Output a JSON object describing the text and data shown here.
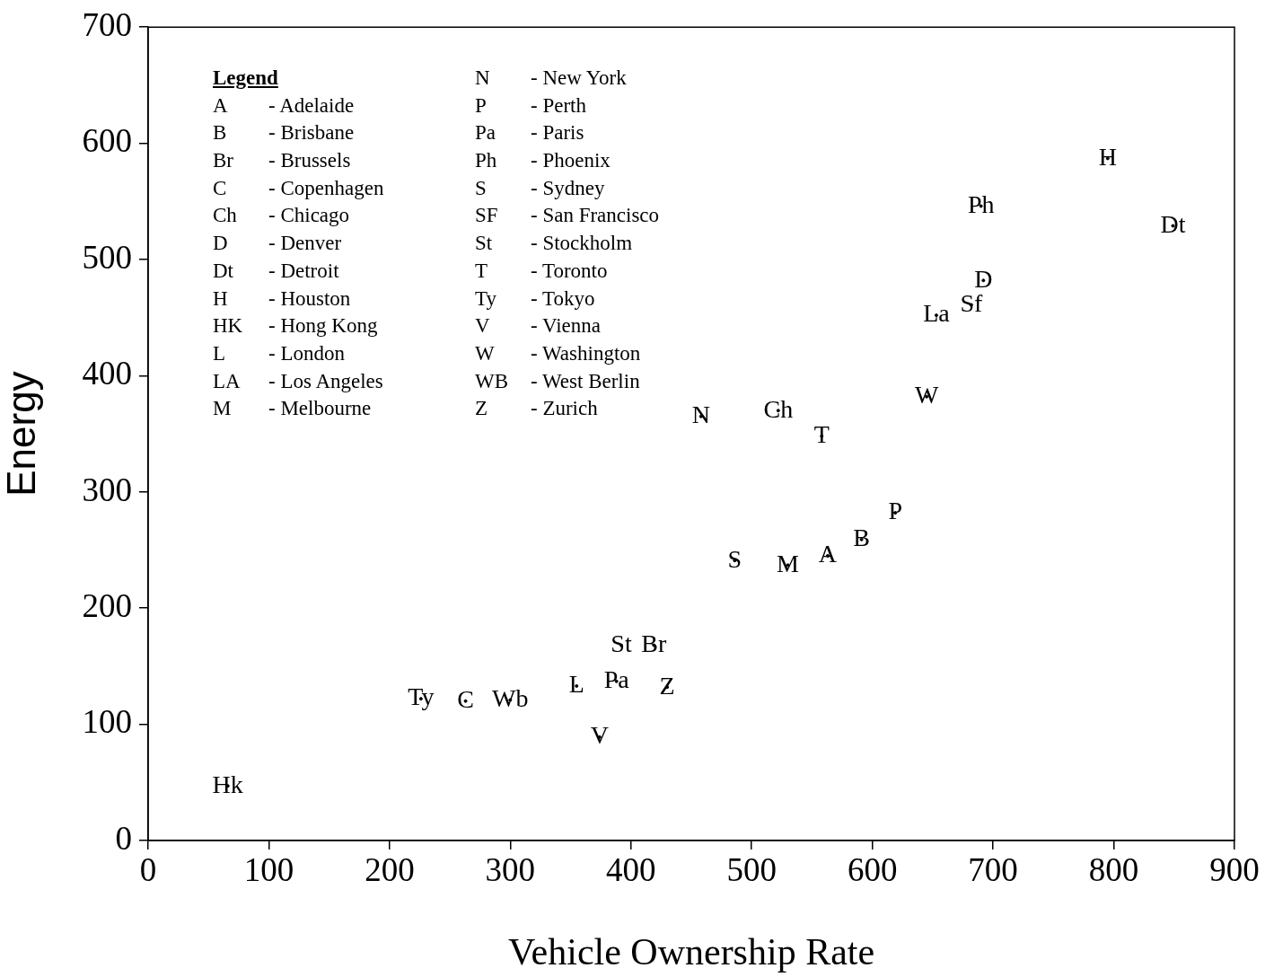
{
  "chart_data": {
    "type": "scatter",
    "xlabel": "Vehicle Ownership Rate",
    "ylabel": "Energy",
    "legend_title": "Legend",
    "annotations": [
      "A - Adelaide",
      "B - Brisbane",
      "Br - Brussels",
      "C - Copenhagen",
      "Ch - Chicago",
      "D - Denver",
      "Dt - Detroit",
      "H - Houston",
      "HK - Hong Kong",
      "L - London",
      "LA - Los Angeles",
      "M - Melbourne",
      "N - New York",
      "P - Perth",
      "Pa - Paris",
      "Ph - Phoenix",
      "S - Sydney",
      "SF - San Francisco",
      "St - Stockholm",
      "T - Toronto",
      "Ty - Tokyo",
      "V - Vienna",
      "W - Washington",
      "WB - West Berlin",
      "Z - Zurich"
    ],
    "xlim": [
      0,
      900
    ],
    "xticks": [
      0,
      100,
      200,
      300,
      400,
      500,
      600,
      700,
      800,
      900
    ],
    "ylim": [
      0,
      700
    ],
    "yticks": [
      0,
      100,
      200,
      300,
      400,
      500,
      600,
      700
    ],
    "grid": false,
    "legend": false,
    "series": [
      {
        "color": "#000000",
        "x": [
          795,
          690,
          849,
          692,
          682,
          653,
          645,
          458,
          522,
          558,
          619,
          591,
          563,
          530,
          486,
          392,
          419,
          388,
          430,
          355,
          374,
          226,
          263,
          300,
          66
        ],
        "values": [
          587,
          546,
          529,
          482,
          461,
          452,
          382,
          365,
          370,
          348,
          282,
          259,
          245,
          237,
          241,
          168,
          168,
          137,
          132,
          133,
          89,
          122,
          120,
          121,
          47
        ],
        "value_labels": [
          "H",
          "Ph",
          "Dt",
          "D",
          "Sf",
          "La",
          "W",
          "N",
          "Ch",
          "T",
          "P",
          "B",
          "A",
          "M",
          "S",
          "St",
          "Br",
          "Pa",
          "Z",
          "L",
          "V",
          "Ty",
          "C",
          "Wb",
          "Hk"
        ]
      }
    ]
  }
}
